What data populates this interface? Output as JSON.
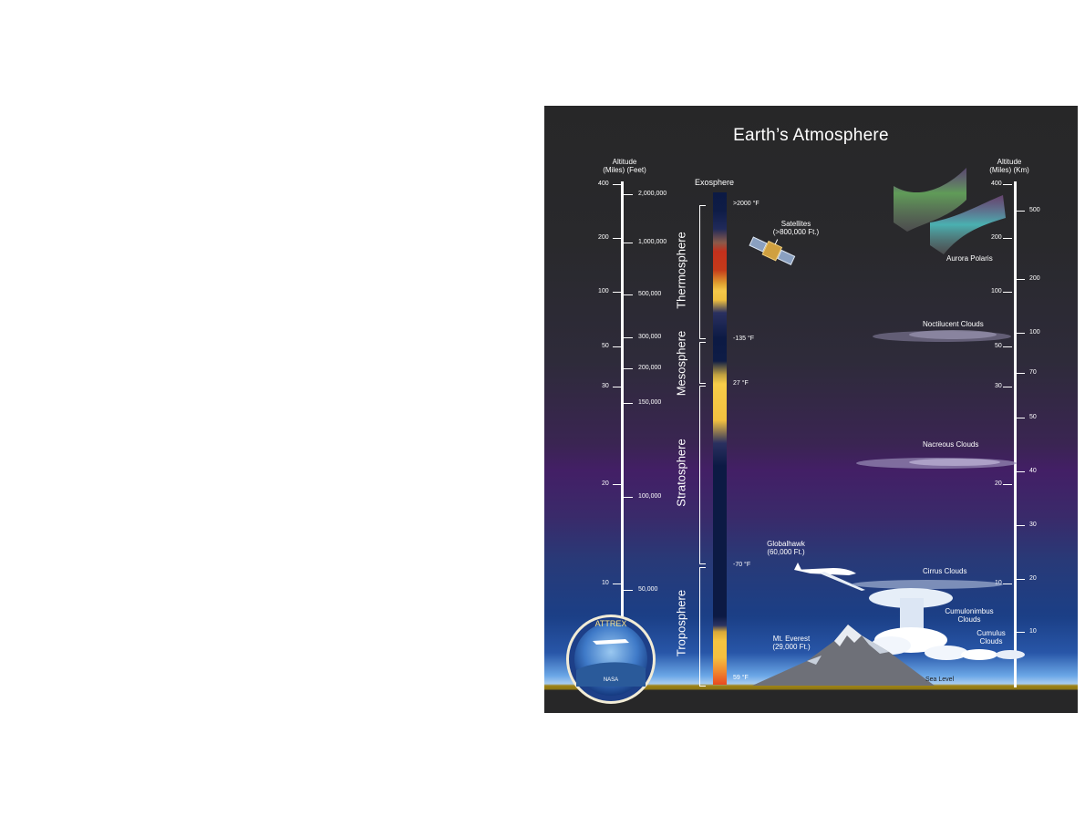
{
  "title": "Earth’s Atmosphere",
  "left_axis": {
    "header_line1": "Altitude",
    "header_line2": "(Miles)   (Feet)",
    "miles": [
      "400",
      "200",
      "100",
      "50",
      "30",
      "20",
      "10"
    ],
    "feet": [
      "2,000,000",
      "1,000,000",
      "500,000",
      "300,000",
      "200,000",
      "150,000",
      "100,000",
      "50,000"
    ]
  },
  "right_axis": {
    "header_line1": "Altitude",
    "header_line2": "(Miles)   (Km)",
    "miles": [
      "400",
      "200",
      "100",
      "50",
      "30",
      "20",
      "10"
    ],
    "km": [
      "500",
      "200",
      "100",
      "70",
      "50",
      "40",
      "30",
      "20",
      "10"
    ]
  },
  "layers": {
    "exosphere": "Exosphere",
    "thermosphere": "Thermosphere",
    "mesosphere": "Mesosphere",
    "stratosphere": "Stratosphere",
    "troposphere": "Troposphere"
  },
  "temperatures": {
    "t1": ">2000 °F",
    "t2": "-135 °F",
    "t3": "27 °F",
    "t4": "-70 °F",
    "t5": "59 °F"
  },
  "features": {
    "satellites_line1": "Satellites",
    "satellites_line2": "(>800,000 Ft.)",
    "aurora": "Aurora Polaris",
    "noctilucent": "Noctilucent Clouds",
    "nacreous": "Nacreous Clouds",
    "globalhawk_line1": "Globalhawk",
    "globalhawk_line2": "(60,000 Ft.)",
    "cirrus": "Cirrus Clouds",
    "cumulonimbus_line1": "Cumulonimbus",
    "cumulonimbus_line2": "Clouds",
    "cumulus_line1": "Cumulus",
    "cumulus_line2": "Clouds",
    "everest_line1": "Mt. Everest",
    "everest_line2": "(29,000 Ft.)",
    "sea_level": "Sea Level"
  },
  "logo": {
    "top_text": "ATTREX",
    "bottom_text": "NASA"
  },
  "colors": {
    "background": "#272728",
    "stratosphere_band": "#431f66",
    "troposphere_band": "#1b3f86",
    "ground": "#a08418"
  }
}
